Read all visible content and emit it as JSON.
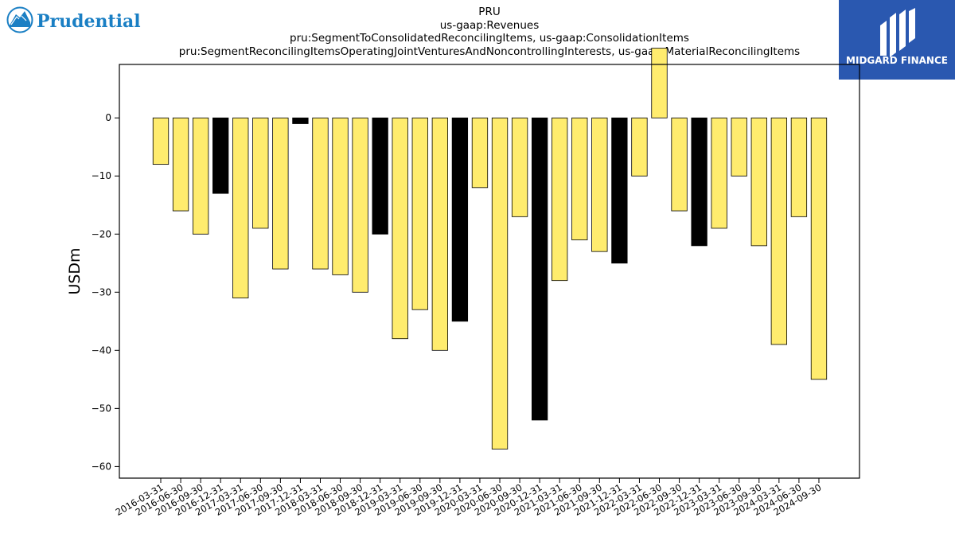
{
  "brand": {
    "left_logo_text": "Prudential",
    "right_logo_text": "MIDGARD FINANCE"
  },
  "colors": {
    "bar_default": "#ffec6e",
    "bar_highlight": "#000000",
    "bar_edge": "#000000",
    "right_logo_bg": "#2a58b0",
    "left_logo_blue": "#1a7fc4"
  },
  "chart_data": {
    "type": "bar",
    "title_lines": [
      "PRU",
      "us-gaap:Revenues",
      "pru:SegmentToConsolidatedReconcilingItems, us-gaap:ConsolidationItems",
      "pru:SegmentReconcilingItemsOperatingJointVenturesAndNoncontrollingInterests, us-gaap:MaterialReconcilingItems"
    ],
    "xlabel": "",
    "ylabel": "USDm",
    "ylim": [
      -62,
      9.2
    ],
    "yticks": [
      0,
      -10,
      -20,
      -30,
      -40,
      -50,
      -60
    ],
    "grid": false,
    "legend": "none",
    "categories": [
      "2016-03-31",
      "2016-06-30",
      "2016-09-30",
      "2016-12-31",
      "2017-03-31",
      "2017-06-30",
      "2017-09-30",
      "2017-12-31",
      "2018-03-31",
      "2018-06-30",
      "2018-09-30",
      "2018-12-31",
      "2019-03-31",
      "2019-06-30",
      "2019-09-30",
      "2019-12-31",
      "2020-03-31",
      "2020-06-30",
      "2020-09-30",
      "2020-12-31",
      "2021-03-31",
      "2021-06-30",
      "2021-09-30",
      "2021-12-31",
      "2022-03-31",
      "2022-06-30",
      "2022-09-30",
      "2022-12-31",
      "2023-03-31",
      "2023-06-30",
      "2023-09-30",
      "2024-03-31",
      "2024-06-30",
      "2024-09-30"
    ],
    "values": [
      -8,
      -16,
      -20,
      -13,
      -31,
      -19,
      -26,
      -1,
      -26,
      -27,
      -30,
      -20,
      -38,
      -33,
      -40,
      -35,
      -12,
      -57,
      -17,
      -52,
      -28,
      -21,
      -23,
      -25,
      -10,
      12,
      -16,
      -22,
      -19,
      -10,
      -22,
      -39,
      -17,
      -45
    ],
    "highlighted": [
      false,
      false,
      false,
      true,
      false,
      false,
      false,
      true,
      false,
      false,
      false,
      true,
      false,
      false,
      false,
      true,
      false,
      false,
      false,
      true,
      false,
      false,
      false,
      true,
      false,
      false,
      false,
      true,
      false,
      false,
      false,
      false,
      false,
      false
    ]
  }
}
